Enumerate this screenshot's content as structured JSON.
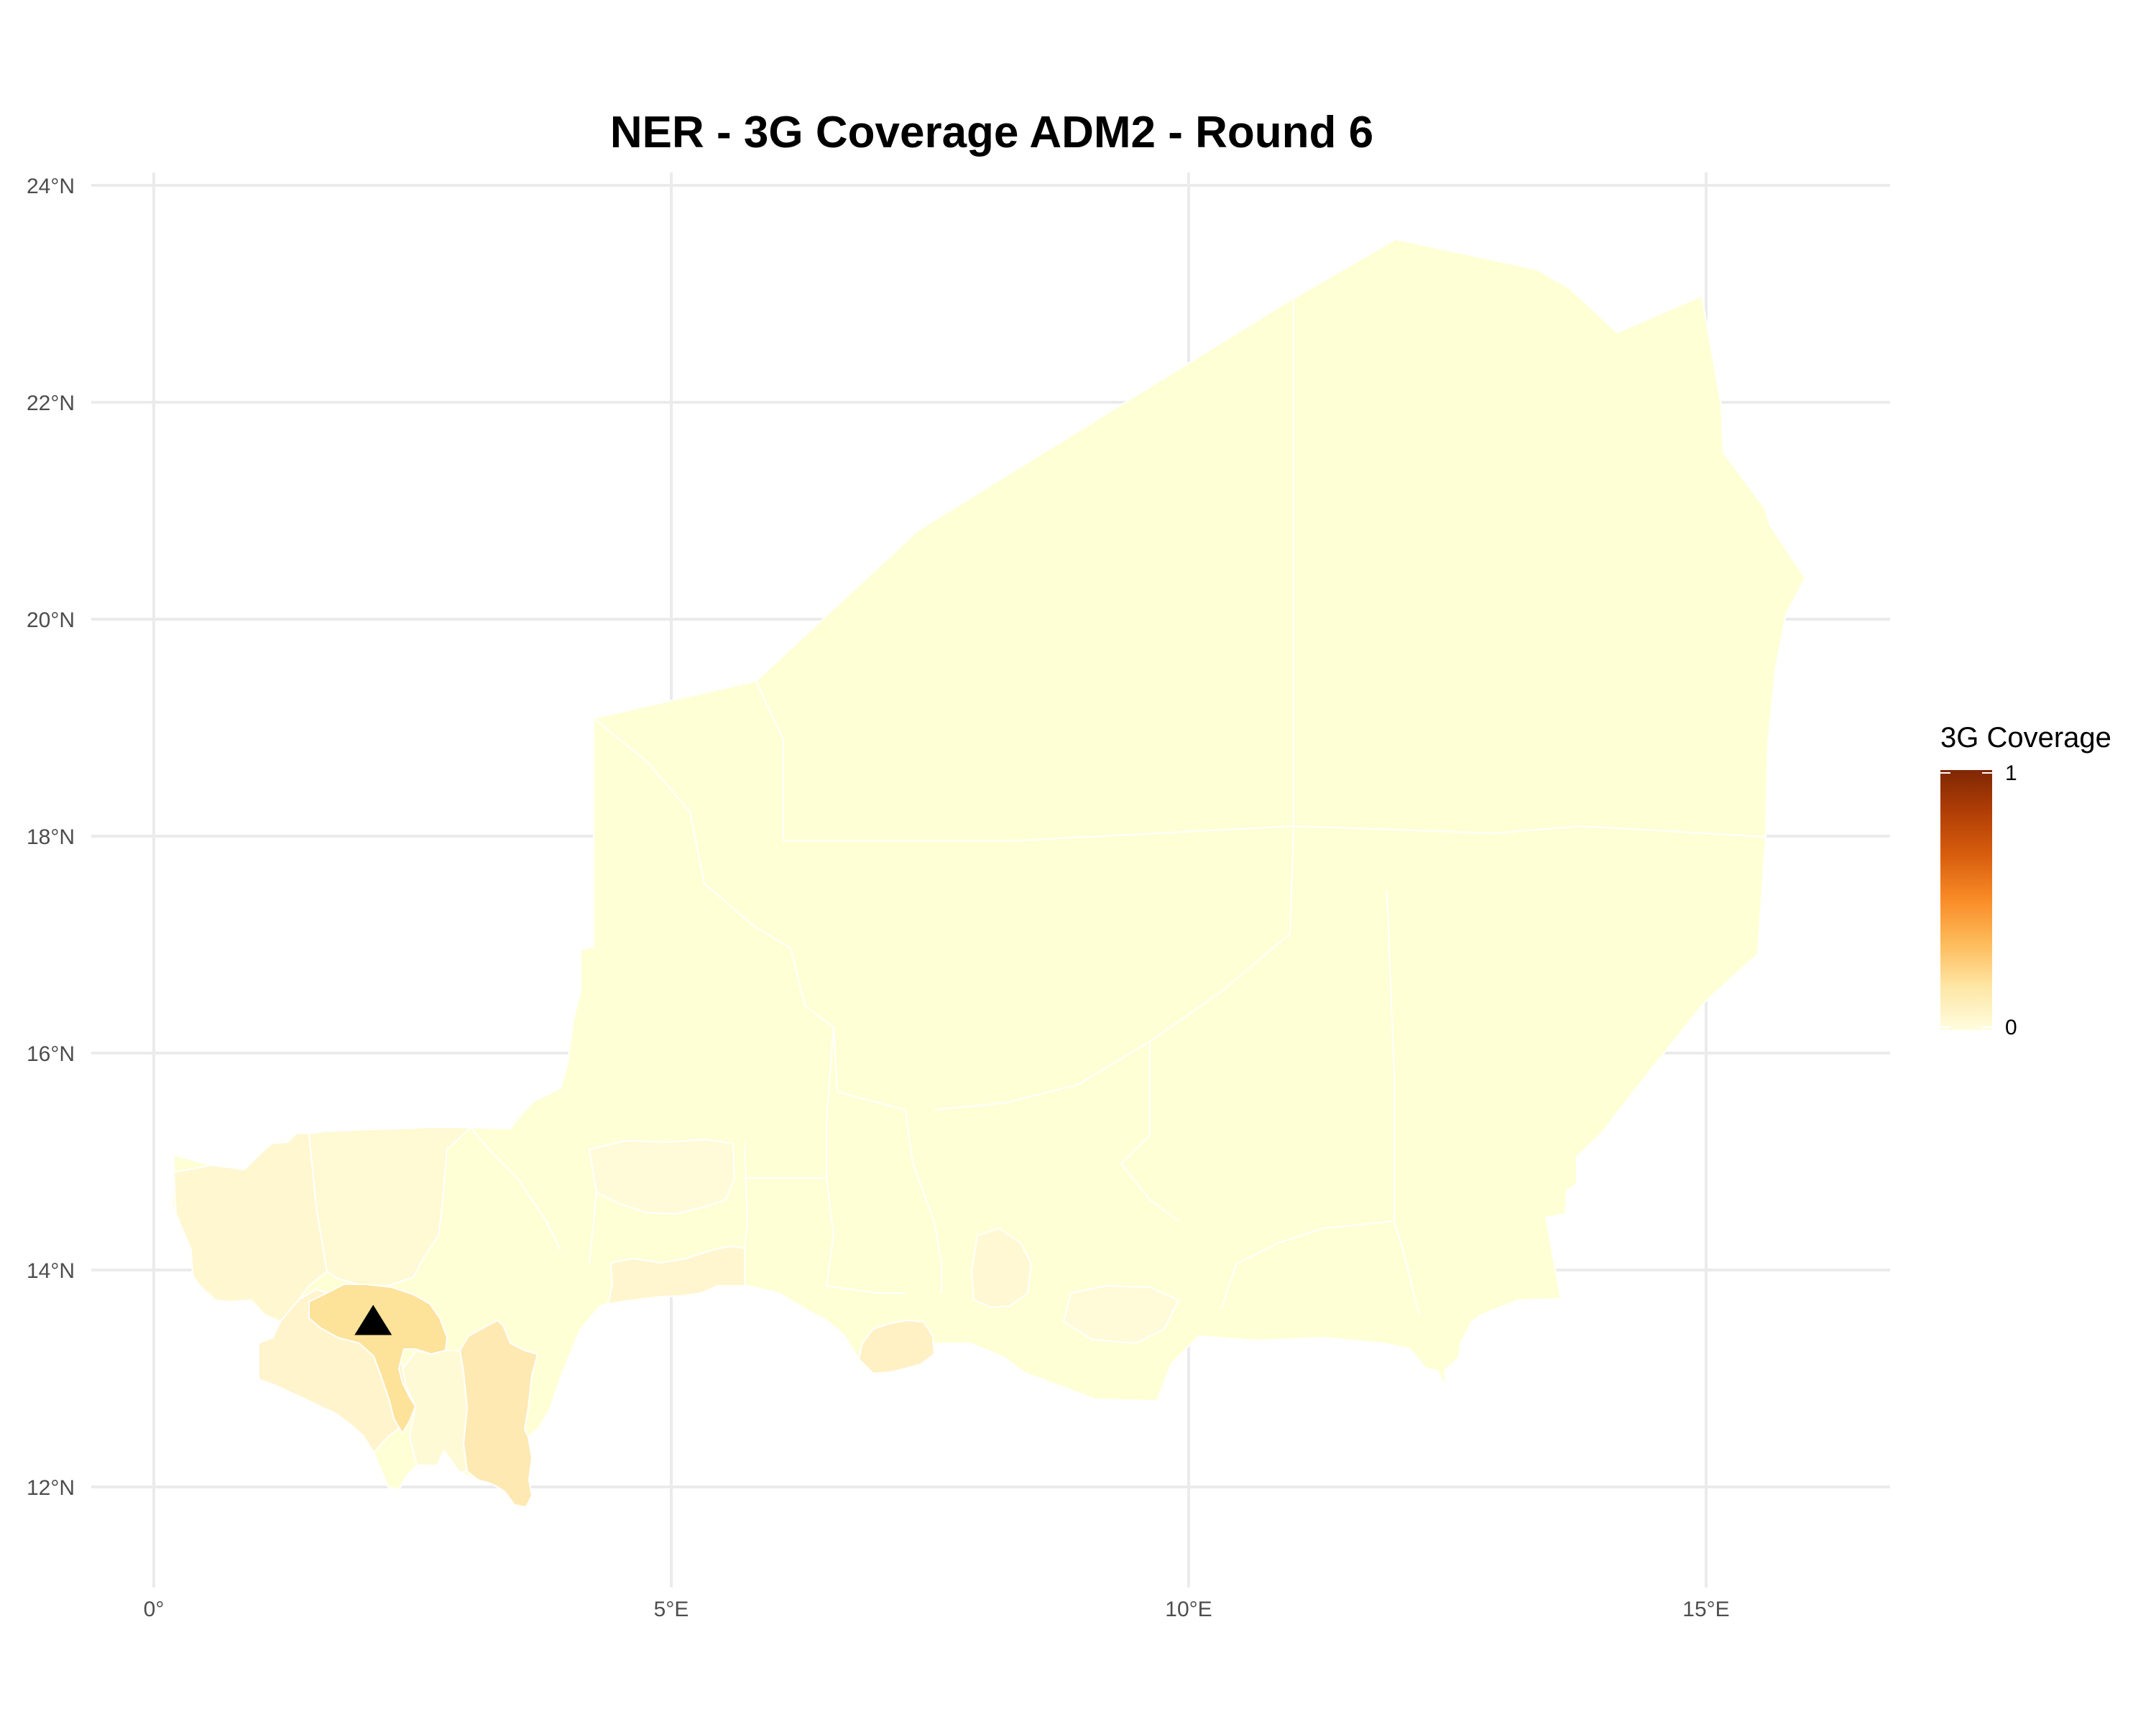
{
  "title": "NER - 3G Coverage ADM2 - Round 6",
  "map": {
    "x_ticks": [
      {
        "value": 0,
        "label": "0°"
      },
      {
        "value": 5,
        "label": "5°E"
      },
      {
        "value": 10,
        "label": "10°E"
      },
      {
        "value": 15,
        "label": "15°E"
      }
    ],
    "y_ticks": [
      {
        "value": 12,
        "label": "12°N"
      },
      {
        "value": 14,
        "label": "14°N"
      },
      {
        "value": 16,
        "label": "16°N"
      },
      {
        "value": 18,
        "label": "18°N"
      },
      {
        "value": 20,
        "label": "20°N"
      },
      {
        "value": 22,
        "label": "22°N"
      },
      {
        "value": 24,
        "label": "24°N"
      }
    ],
    "marker": {
      "shape": "triangle",
      "lon": 2.12,
      "lat": 13.52,
      "color": "#000000"
    }
  },
  "legend": {
    "title": "3G Coverage",
    "max_label": "1",
    "min_label": "0",
    "colors": [
      "#fffddf",
      "#fee6a5",
      "#fdbb5b",
      "#f98c27",
      "#d95f0e",
      "#b23f06",
      "#7f2704"
    ]
  },
  "colors": {
    "coverage_0": "#ffffd6",
    "coverage_low": "#fff4cc",
    "coverage_mid": "#fee8ac",
    "coverage_higher": "#fde29a",
    "grid": "#ebebeb",
    "region_border": "#ffffff"
  }
}
